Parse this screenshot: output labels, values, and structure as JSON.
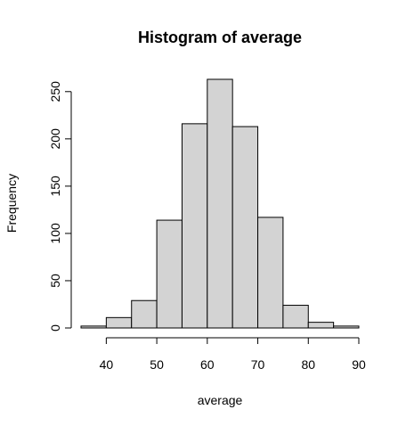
{
  "chart_data": {
    "type": "bar",
    "title": "Histogram of average",
    "xlabel": "average",
    "ylabel": "Frequency",
    "bins": [
      {
        "lo": 35,
        "hi": 40,
        "count": 2
      },
      {
        "lo": 40,
        "hi": 45,
        "count": 11
      },
      {
        "lo": 45,
        "hi": 50,
        "count": 29
      },
      {
        "lo": 50,
        "hi": 55,
        "count": 114
      },
      {
        "lo": 55,
        "hi": 60,
        "count": 216
      },
      {
        "lo": 60,
        "hi": 65,
        "count": 263
      },
      {
        "lo": 65,
        "hi": 70,
        "count": 213
      },
      {
        "lo": 70,
        "hi": 75,
        "count": 117
      },
      {
        "lo": 75,
        "hi": 80,
        "count": 24
      },
      {
        "lo": 80,
        "hi": 85,
        "count": 6
      },
      {
        "lo": 85,
        "hi": 90,
        "count": 2
      }
    ],
    "xticks": [
      40,
      50,
      60,
      70,
      80,
      90
    ],
    "yticks": [
      0,
      50,
      100,
      150,
      200,
      250
    ],
    "xlim": [
      35,
      90
    ],
    "ylim": [
      0,
      263
    ],
    "bar_fill": "#d3d3d3",
    "bar_stroke": "#000000",
    "grid": false,
    "legend": "none"
  }
}
